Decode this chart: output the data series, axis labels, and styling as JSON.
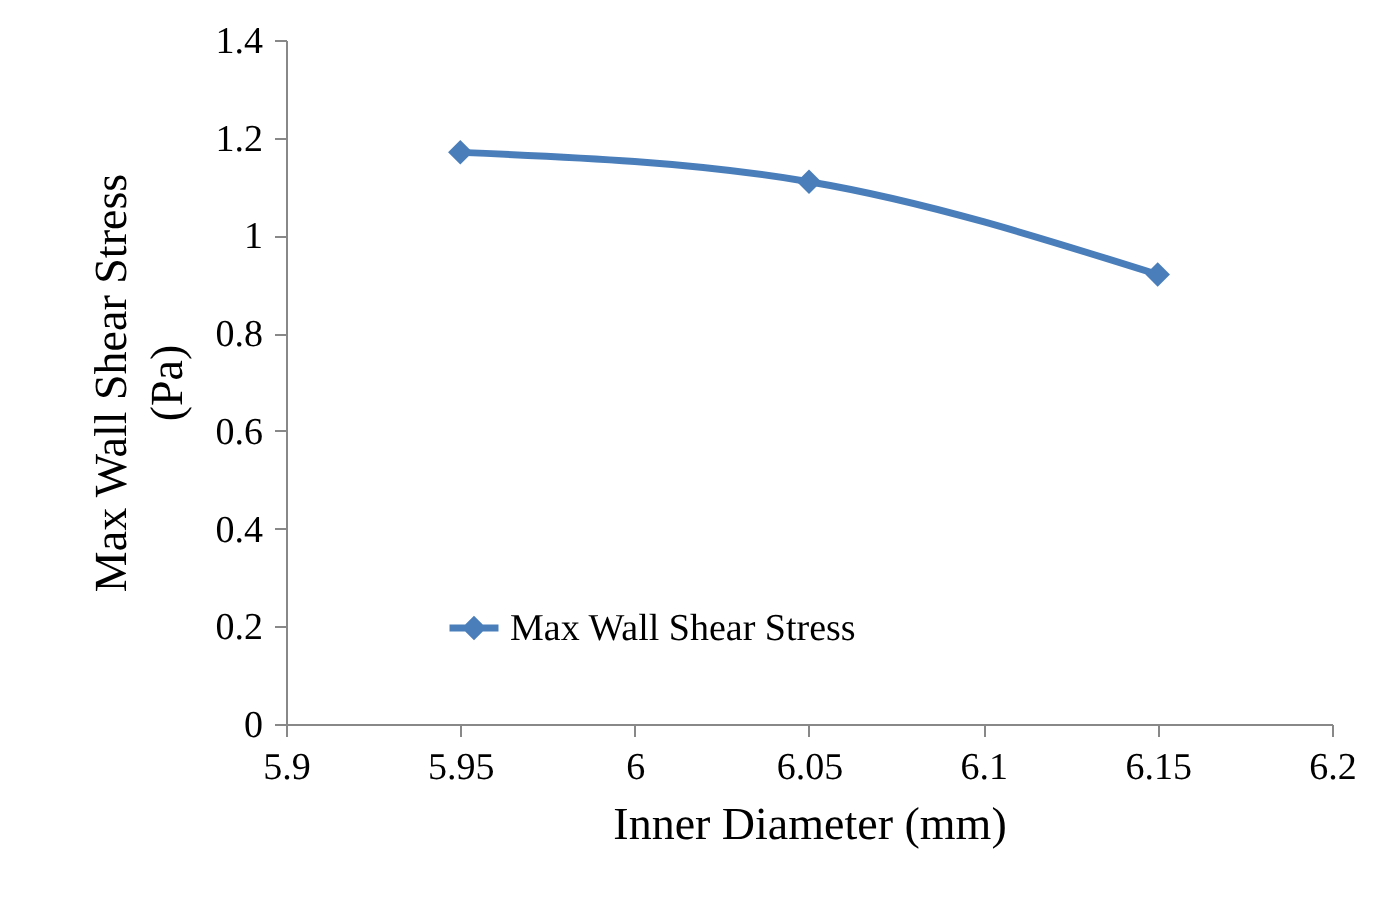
{
  "chart_data": {
    "type": "line",
    "xlabel": "Inner Diameter (mm)",
    "ylabel": "Max Wall Shear Stress (Pa)",
    "x": [
      5.95,
      6.05,
      6.15
    ],
    "series": [
      {
        "name": "Max Wall Shear Stress",
        "color": "#4a7ebb",
        "values": [
          1.17,
          1.11,
          0.92
        ]
      }
    ],
    "xlim": [
      5.9,
      6.2
    ],
    "xticks": [
      5.9,
      5.95,
      6,
      6.05,
      6.1,
      6.15,
      6.2
    ],
    "ylim": [
      0,
      1.4
    ],
    "yticks": [
      0,
      0.2,
      0.4,
      0.6,
      0.8,
      1,
      1.2,
      1.4
    ],
    "grid": false,
    "legend": "bottom left",
    "marker": "diamond",
    "line_style": "solid"
  }
}
